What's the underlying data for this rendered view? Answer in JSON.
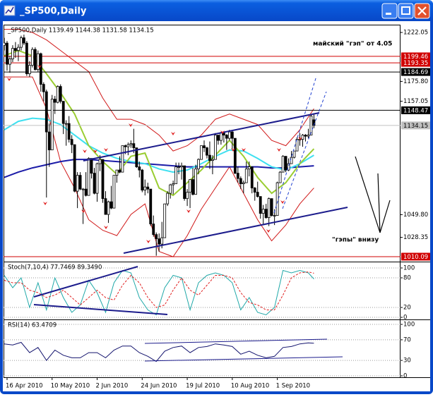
{
  "window": {
    "title": "_SP500,Daily"
  },
  "chart_data": [
    {
      "type": "candlestick",
      "title": "_SP500,Daily  1139.49 1144.38 1131.58 1134.15",
      "xlim": [
        -0.25,
        140.75
      ],
      "xticks": [
        {
          "value": 1,
          "label": "16 Apr 2010"
        },
        {
          "value": 17,
          "label": "10 May 2010"
        },
        {
          "value": 33,
          "label": "2 Jun 2010"
        },
        {
          "value": 49,
          "label": "24 Jun 2010"
        },
        {
          "value": 65,
          "label": "19 Jul 2010"
        },
        {
          "value": 81,
          "label": "10 Aug 2010"
        },
        {
          "value": 97,
          "label": "1 Sep 2010"
        }
      ],
      "ylim": [
        1006.09,
        1228.74
      ],
      "yticks": [
        1222.05,
        {
          "value": 1175.8,
          "label": "1175.80"
        },
        1157.05,
        {
          "value": 1049.8,
          "label": "1049.80"
        },
        1028.35
      ],
      "levels": [
        {
          "value": 1193.35,
          "color": "#d00000"
        },
        {
          "value": 1199.46,
          "color": "#d00000"
        },
        {
          "value": 1184.69,
          "color": "#000000"
        },
        {
          "value": 1148.47,
          "color": "#000000"
        },
        {
          "value": 1134.15,
          "color": "#c0c0c0"
        },
        {
          "value": 1010.09,
          "color": "#d00000"
        }
      ],
      "open": [
        1210,
        1212,
        1192,
        1197,
        1207,
        1205,
        1208,
        1217,
        1212,
        1183,
        1191,
        1206,
        1187,
        1202,
        1173,
        1166,
        1128,
        1111,
        1159,
        1156,
        1171,
        1157,
        1136,
        1136,
        1121,
        1116,
        1072,
        1087,
        1074,
        1074,
        1068,
        1103,
        1089,
        1070,
        1098,
        1102,
        1065,
        1050,
        1062,
        1056,
        1087,
        1092,
        1090,
        1115,
        1114,
        1116,
        1117,
        1113,
        1095,
        1092,
        1073,
        1076,
        1074,
        1041,
        1031,
        1027,
        1022,
        1028,
        1060,
        1070,
        1078,
        1079,
        1095,
        1095,
        1096,
        1065,
        1071,
        1083,
        1069,
        1093,
        1102,
        1115,
        1113,
        1106,
        1101,
        1102,
        1125,
        1120,
        1127,
        1125,
        1122,
        1128,
        1122,
        1089,
        1084,
        1079,
        1080,
        1093,
        1095,
        1075,
        1071,
        1067,
        1051,
        1055,
        1047,
        1065,
        1049,
        1049,
        1080,
        1090,
        1105,
        1092,
        1098,
        1104,
        1110,
        1121,
        1121,
        1125,
        1124,
        1125,
        1139.49
      ],
      "high": [
        1217,
        1214,
        1200,
        1210,
        1213,
        1211,
        1219,
        1220,
        1214,
        1195,
        1208,
        1208,
        1205,
        1203,
        1175,
        1168,
        1136,
        1163,
        1162,
        1172,
        1173,
        1157,
        1139,
        1143,
        1125,
        1116,
        1090,
        1090,
        1075,
        1090,
        1104,
        1103,
        1094,
        1099,
        1106,
        1102,
        1072,
        1063,
        1077,
        1087,
        1092,
        1105,
        1115,
        1116,
        1118,
        1120,
        1131,
        1113,
        1100,
        1093,
        1083,
        1080,
        1074,
        1049,
        1033,
        1032,
        1043,
        1060,
        1072,
        1079,
        1082,
        1099,
        1099,
        1099,
        1096,
        1074,
        1083,
        1094,
        1097,
        1103,
        1115,
        1120,
        1114,
        1119,
        1106,
        1127,
        1125,
        1128,
        1128,
        1126,
        1130,
        1130,
        1122,
        1095,
        1086,
        1082,
        1100,
        1100,
        1095,
        1076,
        1081,
        1067,
        1059,
        1060,
        1066,
        1065,
        1055,
        1081,
        1091,
        1106,
        1105,
        1103,
        1110,
        1110,
        1123,
        1127,
        1126,
        1126,
        1131,
        1144,
        1144.38
      ],
      "low": [
        1205,
        1186,
        1184,
        1194,
        1198,
        1195,
        1205,
        1210,
        1181,
        1180,
        1189,
        1186,
        1185,
        1166,
        1157,
        1066,
        1095,
        1111,
        1145,
        1155,
        1155,
        1126,
        1115,
        1118,
        1108,
        1071,
        1056,
        1073,
        1041,
        1067,
        1068,
        1084,
        1069,
        1062,
        1091,
        1061,
        1050,
        1042,
        1055,
        1056,
        1080,
        1089,
        1090,
        1107,
        1106,
        1113,
        1108,
        1094,
        1085,
        1071,
        1068,
        1070,
        1039,
        1029,
        1011,
        1015,
        1018,
        1028,
        1058,
        1065,
        1069,
        1079,
        1088,
        1083,
        1063,
        1058,
        1056,
        1068,
        1069,
        1088,
        1102,
        1109,
        1103,
        1093,
        1088,
        1102,
        1116,
        1116,
        1118,
        1111,
        1120,
        1112,
        1088,
        1080,
        1074,
        1070,
        1080,
        1086,
        1070,
        1063,
        1066,
        1046,
        1040,
        1046,
        1039,
        1048,
        1040,
        1049,
        1080,
        1090,
        1090,
        1091,
        1098,
        1103,
        1110,
        1115,
        1114,
        1119,
        1122,
        1125,
        1131.58
      ],
      "close": [
        1212,
        1192,
        1197,
        1207,
        1205,
        1208,
        1217,
        1212,
        1183,
        1191,
        1206,
        1187,
        1202,
        1173,
        1166,
        1128,
        1111,
        1159,
        1156,
        1171,
        1157,
        1136,
        1136,
        1121,
        1116,
        1072,
        1087,
        1074,
        1074,
        1068,
        1103,
        1089,
        1070,
        1098,
        1102,
        1065,
        1050,
        1062,
        1056,
        1087,
        1092,
        1090,
        1115,
        1114,
        1116,
        1117,
        1113,
        1095,
        1092,
        1073,
        1076,
        1074,
        1041,
        1031,
        1027,
        1022,
        1028,
        1060,
        1070,
        1078,
        1079,
        1095,
        1095,
        1096,
        1065,
        1071,
        1083,
        1069,
        1093,
        1102,
        1115,
        1113,
        1106,
        1101,
        1102,
        1125,
        1120,
        1127,
        1125,
        1122,
        1128,
        1122,
        1089,
        1084,
        1079,
        1080,
        1093,
        1095,
        1075,
        1071,
        1067,
        1051,
        1055,
        1047,
        1065,
        1049,
        1049,
        1080,
        1090,
        1105,
        1092,
        1098,
        1104,
        1110,
        1121,
        1121,
        1125,
        1124,
        1125,
        1143,
        1134.15
      ],
      "overlays": [
        {
          "color": "#d01818",
          "width": 1,
          "x": [
            0,
            5,
            10,
            15,
            20,
            25,
            30,
            35,
            40,
            45,
            50,
            55,
            60,
            65,
            70,
            75,
            80,
            85,
            90,
            95,
            100,
            105,
            110
          ],
          "values": [
            1225,
            1225,
            1222,
            1215,
            1205,
            1195,
            1185,
            1160,
            1140,
            1140,
            1135,
            1125,
            1110,
            1115,
            1125,
            1140,
            1145,
            1140,
            1135,
            1120,
            1115,
            1130,
            1150
          ]
        },
        {
          "color": "#d01818",
          "width": 1,
          "x": [
            0,
            5,
            10,
            15,
            20,
            25,
            30,
            35,
            40,
            45,
            50,
            55,
            60,
            65,
            70,
            75,
            80,
            85,
            90,
            95,
            100,
            105,
            110
          ],
          "values": [
            1180,
            1180,
            1180,
            1150,
            1100,
            1075,
            1045,
            1035,
            1030,
            1050,
            1060,
            1015,
            1010,
            1030,
            1055,
            1075,
            1095,
            1070,
            1045,
            1025,
            1040,
            1060,
            1075
          ]
        },
        {
          "color": "#1c1ca8",
          "width": 2,
          "x": [
            0,
            5,
            10,
            15,
            20,
            25,
            30,
            35,
            40,
            45,
            50,
            55,
            60,
            65,
            70,
            75,
            80,
            85,
            90,
            95,
            100,
            105,
            110
          ],
          "values": [
            1085,
            1090,
            1094,
            1097,
            1100,
            1102,
            1102,
            1101,
            1100,
            1099,
            1098,
            1097,
            1096,
            1095,
            1095,
            1095,
            1095,
            1095,
            1095,
            1094,
            1094,
            1095,
            1096
          ]
        },
        {
          "color": "#3ee0f0",
          "width": 2,
          "x": [
            0,
            5,
            10,
            15,
            20,
            25,
            30,
            35,
            40,
            45,
            50,
            55,
            60,
            65,
            70,
            75,
            80,
            85,
            90,
            95,
            100,
            105,
            110
          ],
          "values": [
            1130,
            1138,
            1141,
            1140,
            1135,
            1125,
            1115,
            1108,
            1103,
            1100,
            1098,
            1093,
            1090,
            1092,
            1098,
            1105,
            1111,
            1110,
            1103,
            1095,
            1092,
            1098,
            1106
          ]
        },
        {
          "color": "#9acd32",
          "width": 2,
          "x": [
            0,
            5,
            10,
            15,
            20,
            25,
            30,
            35,
            40,
            45,
            50,
            55,
            60,
            65,
            70,
            75,
            80,
            85,
            90,
            95,
            100,
            105,
            110
          ],
          "values": [
            1200,
            1205,
            1200,
            1183,
            1165,
            1145,
            1115,
            1100,
            1088,
            1105,
            1108,
            1075,
            1068,
            1080,
            1092,
            1106,
            1120,
            1105,
            1085,
            1070,
            1080,
            1098,
            1112
          ]
        }
      ],
      "annotations": [
        "майский \"гэп\" от 4.05",
        "\"гэпы\" внизу"
      ]
    },
    {
      "type": "line",
      "title": "Stoch(7,10,4) 77.7469 89.3490",
      "ylim": [
        -2.86,
        111.43
      ],
      "yticks": [
        100,
        80,
        20,
        0
      ],
      "grid": true,
      "x": [
        0,
        3,
        6,
        9,
        12,
        15,
        18,
        21,
        24,
        27,
        30,
        33,
        36,
        39,
        42,
        45,
        48,
        51,
        54,
        57,
        60,
        63,
        66,
        69,
        72,
        75,
        78,
        81,
        84,
        87,
        90,
        93,
        96,
        99,
        102,
        105,
        108,
        110
      ],
      "series": [
        {
          "color": "#20a8a8",
          "dash": false,
          "values": [
            85,
            60,
            80,
            20,
            70,
            15,
            80,
            40,
            10,
            25,
            75,
            50,
            10,
            70,
            95,
            90,
            40,
            15,
            5,
            60,
            85,
            80,
            15,
            70,
            85,
            90,
            85,
            70,
            15,
            40,
            10,
            5,
            20,
            95,
            90,
            95,
            90,
            77.7469
          ]
        },
        {
          "color": "#e02020",
          "dash": true,
          "values": [
            75,
            70,
            70,
            55,
            50,
            40,
            45,
            55,
            40,
            25,
            40,
            55,
            40,
            35,
            65,
            85,
            70,
            40,
            20,
            25,
            55,
            80,
            55,
            45,
            65,
            85,
            85,
            80,
            50,
            30,
            25,
            15,
            15,
            45,
            80,
            90,
            92,
            89.349
          ]
        }
      ]
    },
    {
      "type": "line",
      "title": "RSI(14) 63.4709",
      "ylim": [
        -2.74,
        108.2
      ],
      "yticks": [
        100,
        70,
        30,
        0
      ],
      "grid": true,
      "x": [
        0,
        3,
        6,
        9,
        12,
        15,
        18,
        21,
        24,
        27,
        30,
        33,
        36,
        39,
        42,
        45,
        48,
        51,
        54,
        57,
        60,
        63,
        66,
        69,
        72,
        75,
        78,
        81,
        84,
        87,
        90,
        93,
        96,
        99,
        102,
        105,
        108,
        110
      ],
      "series": [
        {
          "color": "#14146e",
          "dash": false,
          "values": [
            62,
            60,
            65,
            45,
            55,
            30,
            50,
            40,
            35,
            35,
            45,
            45,
            35,
            50,
            58,
            58,
            45,
            38,
            28,
            48,
            55,
            58,
            45,
            55,
            57,
            62,
            60,
            57,
            42,
            48,
            40,
            35,
            38,
            55,
            57,
            62,
            64,
            63.4709
          ]
        }
      ]
    }
  ]
}
